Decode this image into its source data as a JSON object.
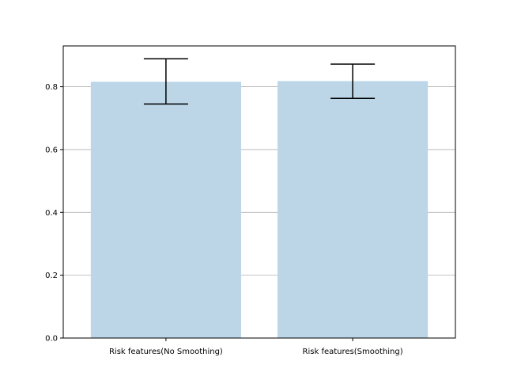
{
  "chart_data": {
    "type": "bar",
    "title": "",
    "xlabel": "",
    "ylabel": "",
    "categories": [
      "Risk features(No Smoothing)",
      "Risk features(Smoothing)"
    ],
    "values": [
      0.816,
      0.818
    ],
    "error_bars": [
      {
        "low": 0.745,
        "high": 0.889
      },
      {
        "low": 0.763,
        "high": 0.872
      }
    ],
    "ylim": [
      0,
      0.93
    ],
    "yticks": [
      0.0,
      0.2,
      0.4,
      0.6,
      0.8
    ],
    "ytick_labels": [
      "0.0",
      "0.2",
      "0.4",
      "0.6",
      "0.8"
    ],
    "grid": "horizontal",
    "legend": "none",
    "colors": {
      "bar": "#bcd6e8",
      "error_bar": "#000000",
      "grid": "#b0b0b0",
      "axis": "#000000"
    }
  }
}
